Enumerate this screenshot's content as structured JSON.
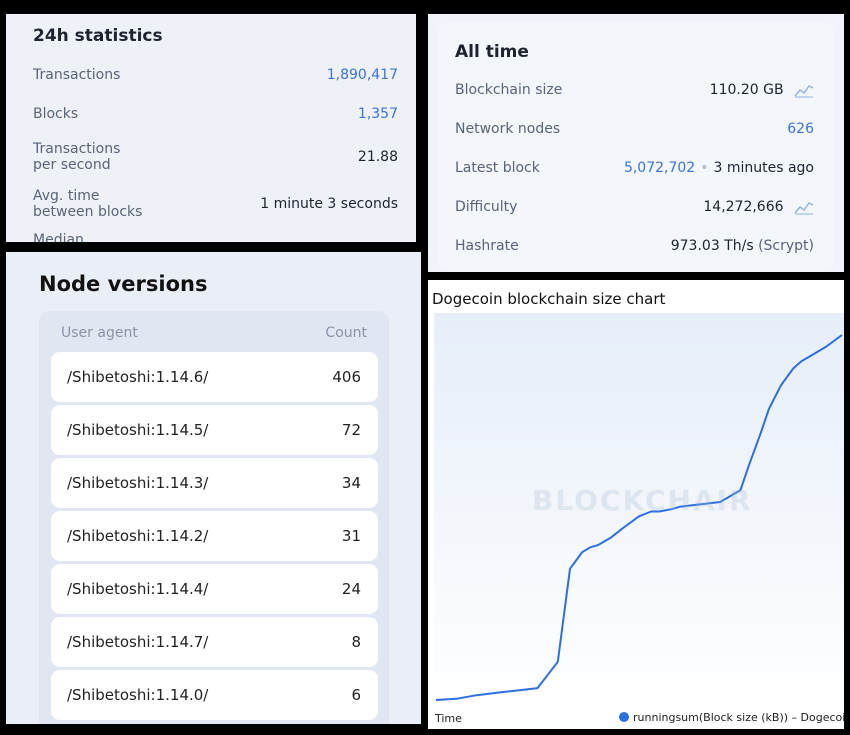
{
  "stats24h": {
    "title": "24h statistics",
    "rows": [
      {
        "label": "Transactions",
        "value": "1,890,417"
      },
      {
        "label": "Blocks",
        "value": "1,357"
      },
      {
        "label": "Transactions per second",
        "value": "21.88"
      },
      {
        "label": "Avg. time between blocks",
        "value": "1 minute 3 seconds"
      },
      {
        "label": "Median"
      }
    ]
  },
  "alltime": {
    "title": "All time",
    "rows": [
      {
        "label": "Blockchain size",
        "value": "110.20 GB",
        "icon": "line-chart-icon"
      },
      {
        "label": "Network nodes",
        "value": "626"
      },
      {
        "label": "Latest block",
        "value": "5,072,702",
        "extra": "3 minutes ago"
      },
      {
        "label": "Difficulty",
        "value": "14,272,666",
        "icon": "line-chart-icon"
      },
      {
        "label": "Hashrate",
        "value": "973.03 Th/s",
        "extra": "(Scrypt)"
      }
    ]
  },
  "nodes": {
    "title": "Node versions",
    "header": {
      "agent": "User agent",
      "count": "Count"
    },
    "rows": [
      {
        "agent": "/Shibetoshi:1.14.6/",
        "count": "406"
      },
      {
        "agent": "/Shibetoshi:1.14.5/",
        "count": "72"
      },
      {
        "agent": "/Shibetoshi:1.14.3/",
        "count": "34"
      },
      {
        "agent": "/Shibetoshi:1.14.2/",
        "count": "31"
      },
      {
        "agent": "/Shibetoshi:1.14.4/",
        "count": "24"
      },
      {
        "agent": "/Shibetoshi:1.14.7/",
        "count": "8"
      },
      {
        "agent": "/Shibetoshi:1.14.0/",
        "count": "6"
      }
    ]
  },
  "chart": {
    "title": "Dogecoin blockchain size chart",
    "xlabel": "Time",
    "legend": "runningsum(Block size (kB)) – Dogecoi",
    "watermark": "BLOCKCHAIR",
    "line_color": "#2d6fe0"
  },
  "chart_data": {
    "type": "line",
    "title": "Dogecoin blockchain size chart",
    "xlabel": "Time",
    "ylabel": "",
    "x": [
      0,
      0.05,
      0.1,
      0.15,
      0.2,
      0.25,
      0.3,
      0.33,
      0.36,
      0.38,
      0.4,
      0.43,
      0.46,
      0.5,
      0.53,
      0.55,
      0.58,
      0.6,
      0.65,
      0.7,
      0.75,
      0.77,
      0.8,
      0.82,
      0.85,
      0.88,
      0.9,
      0.93,
      0.96,
      1.0
    ],
    "series": [
      {
        "name": "runningsum(Block size (kB)) – Dogecoi",
        "values": [
          0,
          0.005,
          0.02,
          0.03,
          0.04,
          0.05,
          0.16,
          0.55,
          0.62,
          0.64,
          0.65,
          0.68,
          0.72,
          0.77,
          0.79,
          0.79,
          0.8,
          0.81,
          0.82,
          0.83,
          0.88,
          0.98,
          1.12,
          1.22,
          1.32,
          1.39,
          1.42,
          1.45,
          1.48,
          1.53
        ]
      }
    ],
    "grid": false
  }
}
